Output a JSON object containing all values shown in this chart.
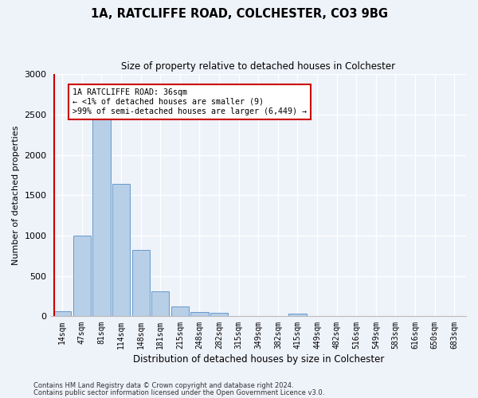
{
  "title1": "1A, RATCLIFFE ROAD, COLCHESTER, CO3 9BG",
  "title2": "Size of property relative to detached houses in Colchester",
  "xlabel": "Distribution of detached houses by size in Colchester",
  "ylabel": "Number of detached properties",
  "categories": [
    "14sqm",
    "47sqm",
    "81sqm",
    "114sqm",
    "148sqm",
    "181sqm",
    "215sqm",
    "248sqm",
    "282sqm",
    "315sqm",
    "349sqm",
    "382sqm",
    "415sqm",
    "449sqm",
    "482sqm",
    "516sqm",
    "549sqm",
    "583sqm",
    "616sqm",
    "650sqm",
    "683sqm"
  ],
  "values": [
    60,
    995,
    2450,
    1645,
    825,
    305,
    125,
    55,
    45,
    0,
    0,
    0,
    30,
    0,
    0,
    0,
    0,
    0,
    0,
    0,
    0
  ],
  "bar_color": "#b8cfe8",
  "bar_edge_color": "#6699cc",
  "annotation_box_text": "1A RATCLIFFE ROAD: 36sqm\n← <1% of detached houses are smaller (9)\n>99% of semi-detached houses are larger (6,449) →",
  "ylim": [
    0,
    3000
  ],
  "yticks": [
    0,
    500,
    1000,
    1500,
    2000,
    2500,
    3000
  ],
  "footnote1": "Contains HM Land Registry data © Crown copyright and database right 2024.",
  "footnote2": "Contains public sector information licensed under the Open Government Licence v3.0.",
  "background_color": "#eef2f9",
  "plot_bg_color": "#eef2f9",
  "grid_color": "#ffffff",
  "annotation_rect_color": "#cc0000",
  "property_line_color": "#cc0000"
}
